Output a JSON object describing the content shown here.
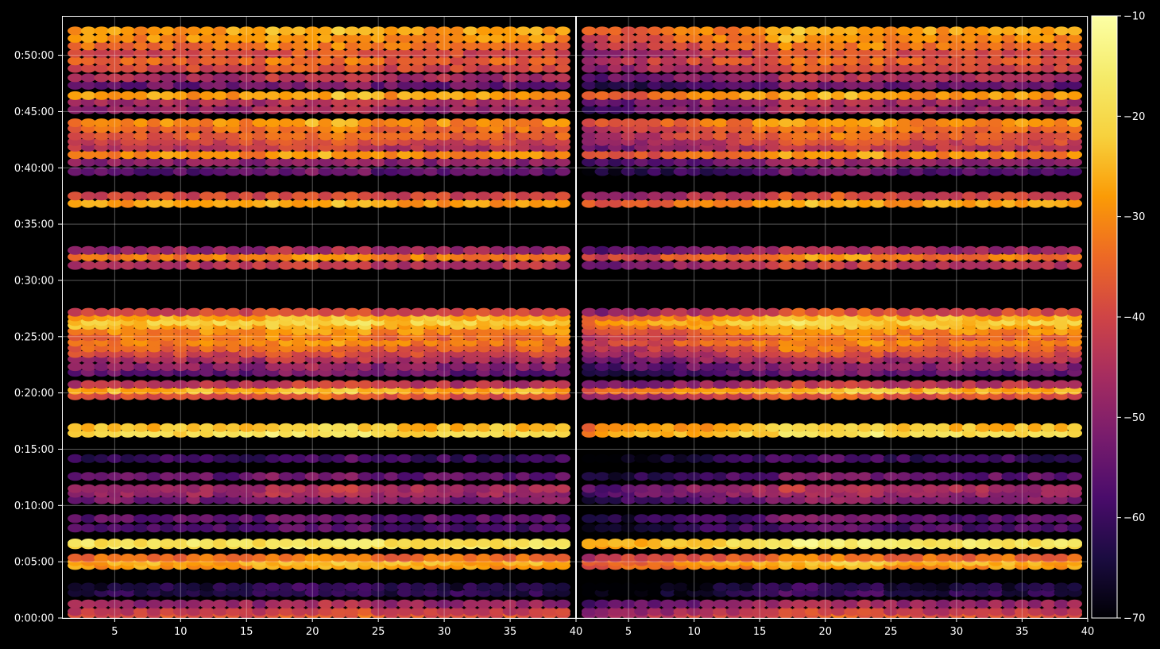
{
  "chart_data": {
    "type": "heatmap",
    "title": "",
    "xlabel": "",
    "ylabel": "",
    "panels": [
      {
        "name": "",
        "xlim": [
          1,
          40
        ],
        "x_ticks": [
          5,
          10,
          15,
          20,
          25,
          30,
          35
        ],
        "x_tick_labels": [
          "5",
          "10",
          "15",
          "20",
          "25",
          "30",
          "35"
        ]
      },
      {
        "name": "",
        "xlim": [
          1,
          40
        ],
        "x_ticks": [
          5,
          10,
          15,
          20,
          25,
          30,
          35,
          40
        ],
        "x_tick_labels": [
          "5",
          "10",
          "15",
          "20",
          "25",
          "30",
          "35",
          "40"
        ]
      }
    ],
    "left_panel_right_edge_label": "40",
    "y_axis": {
      "unit": "time (h:mm:ss)",
      "ylim_seconds": [
        0,
        3210
      ],
      "ticks_seconds": [
        0,
        300,
        600,
        900,
        1200,
        1500,
        1800,
        2100,
        2400,
        2700,
        3000
      ],
      "tick_labels": [
        "0:00:00",
        "0:05:00",
        "0:10:00",
        "0:15:00",
        "0:20:00",
        "0:25:00",
        "0:30:00",
        "0:35:00",
        "0:40:00",
        "0:45:00",
        "0:50:00"
      ]
    },
    "colorbar": {
      "colormap": "inferno",
      "range": [
        -70,
        -10
      ],
      "ticks": [
        -70,
        -60,
        -50,
        -40,
        -30,
        -20,
        -10
      ],
      "tick_labels": [
        "−70",
        "−60",
        "−50",
        "−40",
        "−30",
        "−20",
        "−10"
      ]
    },
    "grid": true,
    "bands_approx": [
      {
        "time_s": 20,
        "value": -38
      },
      {
        "time_s": 35,
        "value": -42
      },
      {
        "time_s": 75,
        "value": -48
      },
      {
        "time_s": 135,
        "value": -62
      },
      {
        "time_s": 165,
        "value": -64
      },
      {
        "time_s": 280,
        "value": -28
      },
      {
        "time_s": 300,
        "value": -26
      },
      {
        "time_s": 320,
        "value": -34
      },
      {
        "time_s": 390,
        "value": -18
      },
      {
        "time_s": 400,
        "value": -18
      },
      {
        "time_s": 480,
        "value": -58
      },
      {
        "time_s": 530,
        "value": -56
      },
      {
        "time_s": 630,
        "value": -52
      },
      {
        "time_s": 665,
        "value": -48
      },
      {
        "time_s": 690,
        "value": -46
      },
      {
        "time_s": 755,
        "value": -55
      },
      {
        "time_s": 850,
        "value": -60
      },
      {
        "time_s": 985,
        "value": -20
      },
      {
        "time_s": 1015,
        "value": -24
      },
      {
        "time_s": 1185,
        "value": -38
      },
      {
        "time_s": 1215,
        "value": -26
      },
      {
        "time_s": 1245,
        "value": -44
      },
      {
        "time_s": 1310,
        "value": -55
      },
      {
        "time_s": 1340,
        "value": -50
      },
      {
        "time_s": 1380,
        "value": -46
      },
      {
        "time_s": 1410,
        "value": -40
      },
      {
        "time_s": 1440,
        "value": -36
      },
      {
        "time_s": 1470,
        "value": -32
      },
      {
        "time_s": 1500,
        "value": -34
      },
      {
        "time_s": 1530,
        "value": -30
      },
      {
        "time_s": 1560,
        "value": -26
      },
      {
        "time_s": 1580,
        "value": -22
      },
      {
        "time_s": 1605,
        "value": -26
      },
      {
        "time_s": 1630,
        "value": -40
      },
      {
        "time_s": 1880,
        "value": -44
      },
      {
        "time_s": 1925,
        "value": -32
      },
      {
        "time_s": 1960,
        "value": -48
      },
      {
        "time_s": 2210,
        "value": -28
      },
      {
        "time_s": 2250,
        "value": -40
      },
      {
        "time_s": 2380,
        "value": -56
      },
      {
        "time_s": 2430,
        "value": -50
      },
      {
        "time_s": 2470,
        "value": -30
      },
      {
        "time_s": 2510,
        "value": -44
      },
      {
        "time_s": 2540,
        "value": -40
      },
      {
        "time_s": 2570,
        "value": -36
      },
      {
        "time_s": 2610,
        "value": -34
      },
      {
        "time_s": 2640,
        "value": -30
      },
      {
        "time_s": 2710,
        "value": -48
      },
      {
        "time_s": 2750,
        "value": -46
      },
      {
        "time_s": 2785,
        "value": -28
      },
      {
        "time_s": 2840,
        "value": -54
      },
      {
        "time_s": 2880,
        "value": -46
      },
      {
        "time_s": 2930,
        "value": -40
      },
      {
        "time_s": 2970,
        "value": -36
      },
      {
        "time_s": 3010,
        "value": -40
      },
      {
        "time_s": 3050,
        "value": -34
      },
      {
        "time_s": 3090,
        "value": -30
      },
      {
        "time_s": 3130,
        "value": -28
      }
    ]
  }
}
